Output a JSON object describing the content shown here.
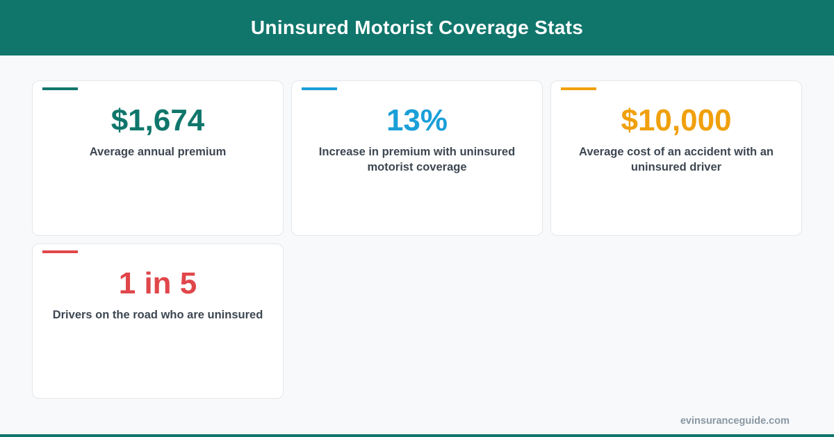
{
  "header": {
    "title": "Uninsured Motorist Coverage Stats"
  },
  "cards": [
    {
      "value": "$1,674",
      "label": "Average annual premium",
      "color": "#10766c"
    },
    {
      "value": "13%",
      "label": "Increase in premium with uninsured motorist coverage",
      "color": "#1a9fd8"
    },
    {
      "value": "$10,000",
      "label": "Average cost of an accident with an uninsured driver",
      "color": "#f0a00c"
    },
    {
      "value": "1 in 5",
      "label": "Drivers on the road who are uninsured",
      "color": "#e0464a"
    }
  ],
  "footer": {
    "source": "evinsuranceguide.com"
  }
}
